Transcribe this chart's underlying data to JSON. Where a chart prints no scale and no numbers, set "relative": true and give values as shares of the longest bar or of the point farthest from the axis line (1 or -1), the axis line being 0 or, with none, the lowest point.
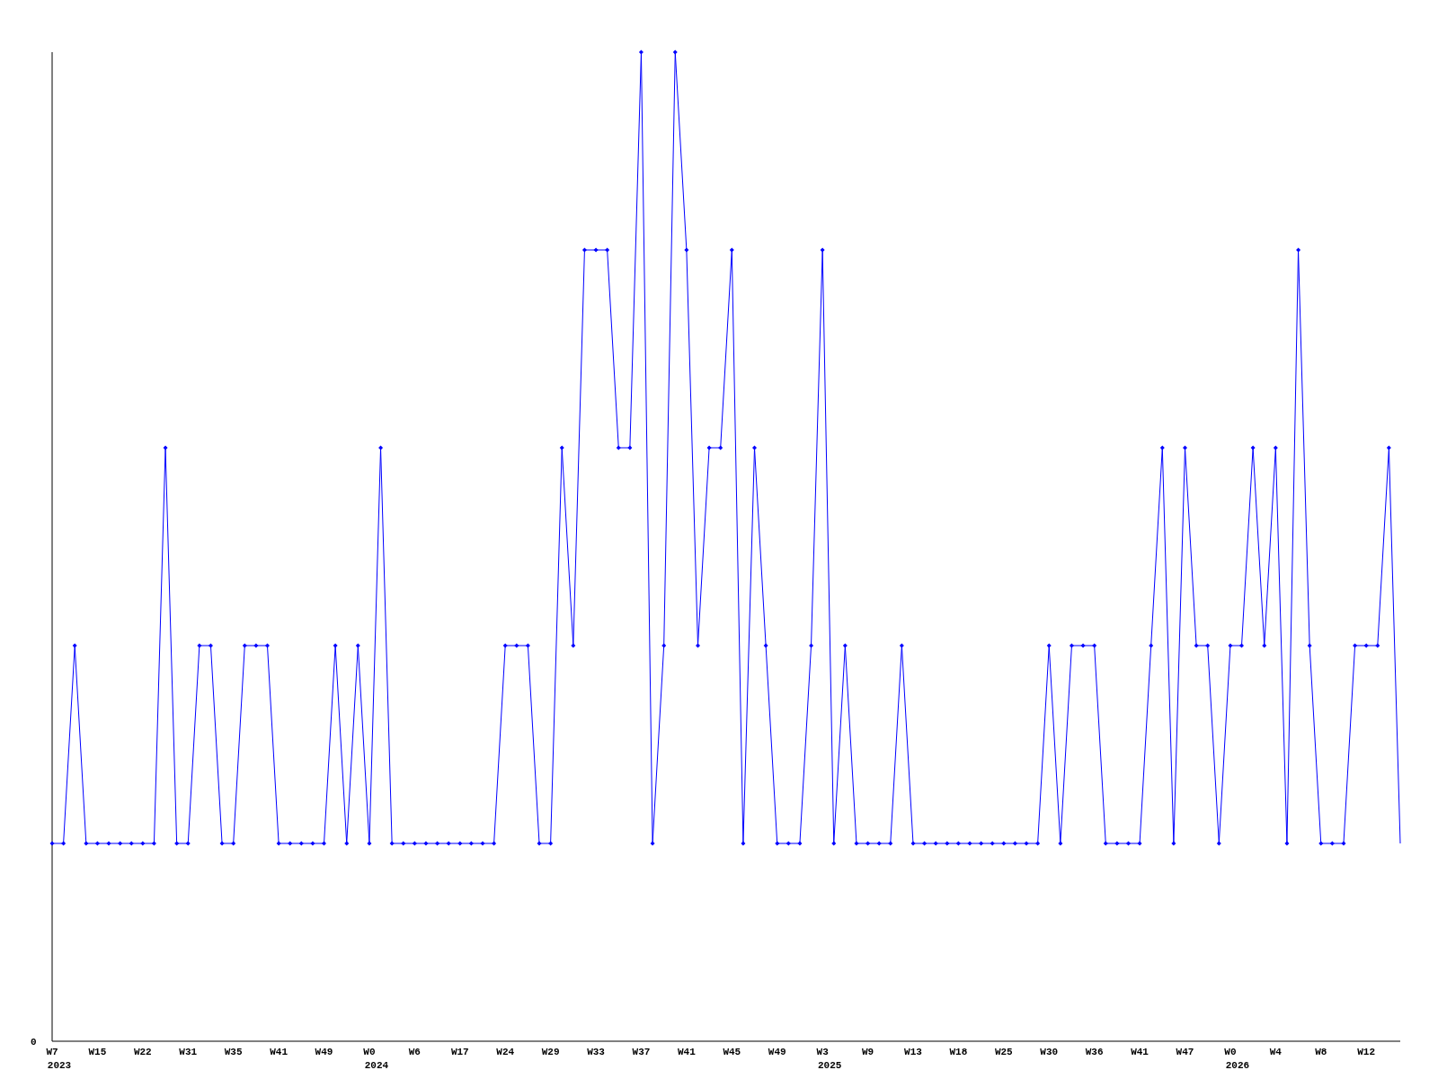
{
  "chart_data": {
    "type": "line",
    "relative": true,
    "marker": "diamond",
    "line_style": "solid",
    "annotations": [
      "0",
      "2023",
      "2024",
      "2025",
      "2026"
    ],
    "categories": [
      "W7",
      null,
      null,
      null,
      "W15",
      null,
      null,
      null,
      "W22",
      null,
      null,
      null,
      "W31",
      null,
      null,
      null,
      "W35",
      null,
      null,
      null,
      "W41",
      null,
      null,
      null,
      "W49",
      null,
      null,
      null,
      "W0",
      null,
      null,
      null,
      "W6",
      null,
      null,
      null,
      "W17",
      null,
      null,
      null,
      "W24",
      null,
      null,
      null,
      "W29",
      null,
      null,
      null,
      "W33",
      null,
      null,
      null,
      "W37",
      null,
      null,
      null,
      "W41",
      null,
      null,
      null,
      "W45",
      null,
      null,
      null,
      "W49",
      null,
      null,
      null,
      "W3",
      null,
      null,
      null,
      "W9",
      null,
      null,
      null,
      "W13",
      null,
      null,
      null,
      "W18",
      null,
      null,
      null,
      "W25",
      null,
      null,
      null,
      "W30",
      null,
      null,
      null,
      "W36",
      null,
      null,
      null,
      "W41",
      null,
      null,
      null,
      "W47",
      null,
      null,
      null,
      "W0",
      null,
      null,
      null,
      "W4",
      null,
      null,
      null,
      "W8",
      null,
      null,
      null,
      "W12",
      null,
      null,
      null
    ],
    "series": [
      {
        "color": "#0000ff",
        "values": [
          0.2,
          0.2,
          0.4,
          0.2,
          0.2,
          0.2,
          0.2,
          0.2,
          0.2,
          0.2,
          0.6,
          0.2,
          0.2,
          0.4,
          0.4,
          0.2,
          0.2,
          0.4,
          0.4,
          0.4,
          0.2,
          0.2,
          0.2,
          0.2,
          0.2,
          0.4,
          0.2,
          0.4,
          0.2,
          0.6,
          0.2,
          0.2,
          0.2,
          0.2,
          0.2,
          0.2,
          0.2,
          0.2,
          0.2,
          0.2,
          0.4,
          0.4,
          0.4,
          0.2,
          0.2,
          0.6,
          0.4,
          0.8,
          0.8,
          0.8,
          0.6,
          0.6,
          1,
          0.2,
          0.4,
          1,
          0.8,
          0.4,
          0.6,
          0.6,
          0.8,
          0.2,
          0.6,
          0.4,
          0.2,
          0.2,
          0.2,
          0.4,
          0.8,
          0.2,
          0.4,
          0.2,
          0.2,
          0.2,
          0.2,
          0.4,
          0.2,
          0.2,
          0.2,
          0.2,
          0.2,
          0.2,
          0.2,
          0.2,
          0.2,
          0.2,
          0.2,
          0.2,
          0.4,
          0.2,
          0.4,
          0.4,
          0.4,
          0.2,
          0.2,
          0.2,
          0.2,
          0.4,
          0.6,
          0.2,
          0.6,
          0.4,
          0.4,
          0.2,
          0.4,
          0.4,
          0.6,
          0.4,
          0.6,
          0.2,
          0.8,
          0.4,
          0.2,
          0.2,
          0.2,
          0.4,
          0.4,
          0.4,
          0.6,
          0.2
        ]
      }
    ]
  }
}
